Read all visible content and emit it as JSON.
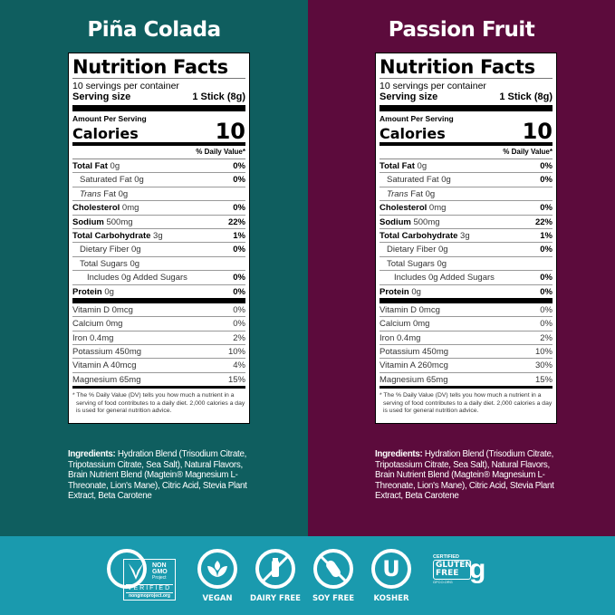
{
  "colors": {
    "left_bg": "#0f5e5f",
    "right_bg": "#5c0b3c",
    "band_bg": "#1a9aae"
  },
  "products": [
    {
      "name": "Piña Colada",
      "label": {
        "title": "Nutrition Facts",
        "servings": "10 servings per container",
        "serving_size_label": "Serving size",
        "serving_size": "1 Stick (8g)",
        "amount_per_serving": "Amount Per Serving",
        "calories_label": "Calories",
        "calories": "10",
        "dv_header": "% Daily Value*",
        "nutrients": [
          {
            "name": "Total Fat",
            "amount": "0g",
            "dv": "0%"
          },
          {
            "name": "Saturated Fat",
            "amount": "0g",
            "dv": "0%"
          },
          {
            "name": "Trans",
            "amount": "Fat 0g",
            "dv": ""
          },
          {
            "name": "Cholesterol",
            "amount": "0mg",
            "dv": "0%"
          },
          {
            "name": "Sodium",
            "amount": "500mg",
            "dv": "22%"
          },
          {
            "name": "Total Carbohydrate",
            "amount": "3g",
            "dv": "1%"
          },
          {
            "name": "Dietary Fiber",
            "amount": "0g",
            "dv": "0%"
          },
          {
            "name": "Total Sugars",
            "amount": "0g",
            "dv": ""
          },
          {
            "name": "Includes 0g Added Sugars",
            "amount": "",
            "dv": "0%"
          },
          {
            "name": "Protein",
            "amount": "0g",
            "dv": "0%"
          }
        ],
        "vitamins": [
          {
            "name": "Vitamin D 0mcg",
            "dv": "0%"
          },
          {
            "name": "Calcium 0mg",
            "dv": "0%"
          },
          {
            "name": "Iron 0.4mg",
            "dv": "2%"
          },
          {
            "name": "Potassium 450mg",
            "dv": "10%"
          },
          {
            "name": "Vitamin A 40mcg",
            "dv": "4%"
          },
          {
            "name": "Magnesium 65mg",
            "dv": "15%"
          }
        ],
        "footnote": "* The % Daily Value (DV) tells you how much a nutrient in a serving of food contributes to a daily diet. 2,000 calories a day is used for general nutrition advice."
      },
      "ingredients_label": "Ingredients:",
      "ingredients": "Hydration Blend (Trisodium Citrate, Tripotassium Citrate, Sea Salt), Natural Flavors, Brain Nutrient Blend (Magtein® Magnesium L-Threonate, Lion's Mane), Citric Acid, Stevia Plant Extract, Beta Carotene"
    },
    {
      "name": "Passion Fruit",
      "label": {
        "title": "Nutrition Facts",
        "servings": "10 servings per container",
        "serving_size_label": "Serving size",
        "serving_size": "1 Stick (8g)",
        "amount_per_serving": "Amount Per Serving",
        "calories_label": "Calories",
        "calories": "10",
        "dv_header": "% Daily Value*",
        "nutrients": [
          {
            "name": "Total Fat",
            "amount": "0g",
            "dv": "0%"
          },
          {
            "name": "Saturated Fat",
            "amount": "0g",
            "dv": "0%"
          },
          {
            "name": "Trans",
            "amount": "Fat 0g",
            "dv": ""
          },
          {
            "name": "Cholesterol",
            "amount": "0mg",
            "dv": "0%"
          },
          {
            "name": "Sodium",
            "amount": "500mg",
            "dv": "22%"
          },
          {
            "name": "Total Carbohydrate",
            "amount": "3g",
            "dv": "1%"
          },
          {
            "name": "Dietary Fiber",
            "amount": "0g",
            "dv": "0%"
          },
          {
            "name": "Total Sugars",
            "amount": "0g",
            "dv": ""
          },
          {
            "name": "Includes 0g Added Sugars",
            "amount": "",
            "dv": "0%"
          },
          {
            "name": "Protein",
            "amount": "0g",
            "dv": "0%"
          }
        ],
        "vitamins": [
          {
            "name": "Vitamin D 0mcg",
            "dv": "0%"
          },
          {
            "name": "Calcium 0mg",
            "dv": "0%"
          },
          {
            "name": "Iron 0.4mg",
            "dv": "2%"
          },
          {
            "name": "Potassium 450mg",
            "dv": "10%"
          },
          {
            "name": "Vitamin A 260mcg",
            "dv": "30%"
          },
          {
            "name": "Magnesium 65mg",
            "dv": "15%"
          }
        ],
        "footnote": "* The % Daily Value (DV) tells you how much a nutrient in a serving of food contributes to a daily diet. 2,000 calories a day is used for general nutrition advice."
      },
      "ingredients_label": "Ingredients:",
      "ingredients": "Hydration Blend (Trisodium Citrate, Tripotassium Citrate, Sea Salt), Natural Flavors, Brain Nutrient Blend (Magtein® Magnesium L-Threonate, Lion's Mane), Citric Acid, Stevia Plant Extract, Beta Carotene"
    }
  ],
  "badges": {
    "nongmo": {
      "line1": "NON",
      "line2": "GMO",
      "line3": "Project",
      "verified": "VERIFIED",
      "url": "nongmoproject.org"
    },
    "vegan": "VEGAN",
    "dairy_free": "DAIRY FREE",
    "soy_free": "SOY FREE",
    "kosher": "KOSHER",
    "kosher_symbol": "U",
    "gluten": {
      "certified": "CERTIFIED",
      "line1": "GLUTEN",
      "line2": "FREE",
      "org": "GFCO.ORG"
    }
  }
}
